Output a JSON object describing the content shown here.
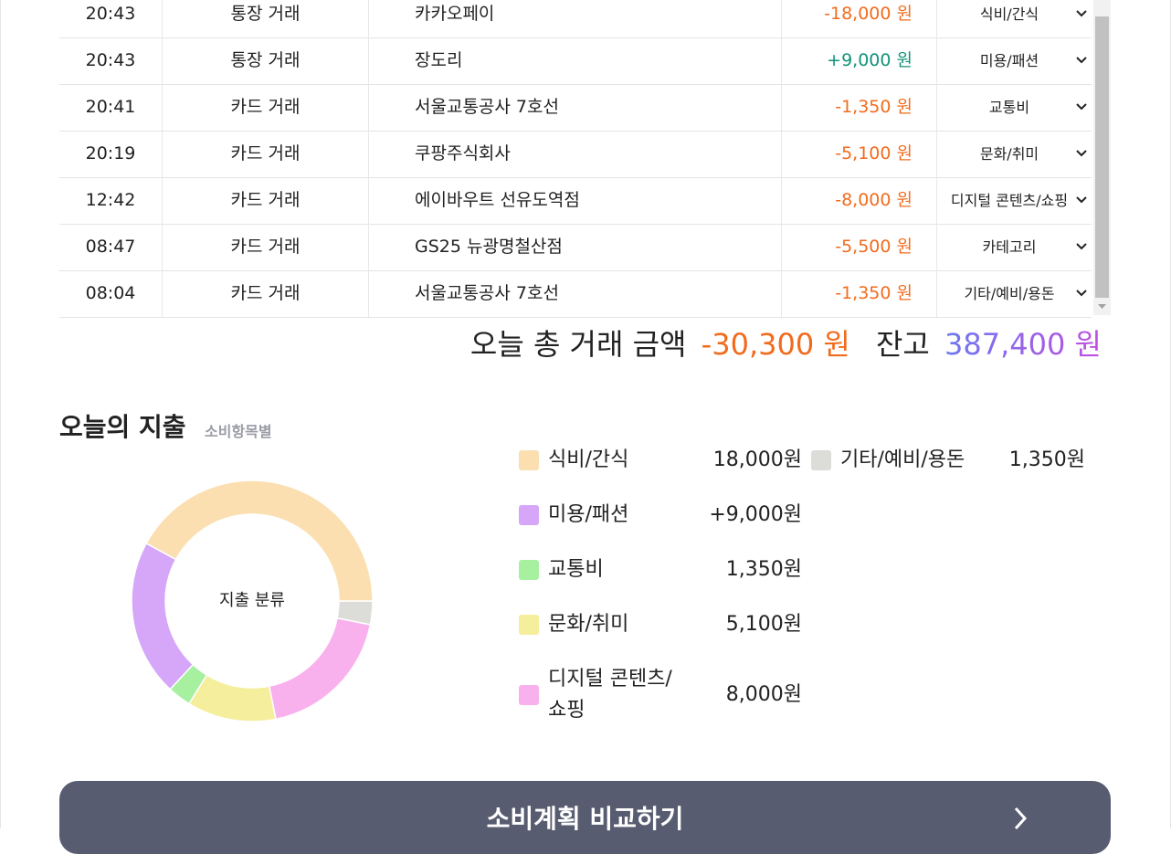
{
  "transactions": [
    [
      "20:43",
      "통장 거래",
      "카카오페이",
      "-18,000 원",
      "식비/간식"
    ],
    [
      "20:43",
      "통장 거래",
      "장도리",
      "+9,000 원",
      "미용/패션"
    ],
    [
      "20:41",
      "카드 거래",
      "서울교통공사 7호선",
      "-1,350 원",
      "교통비"
    ],
    [
      "20:19",
      "카드 거래",
      "쿠팡주식회사",
      "-5,100 원",
      "문화/취미"
    ],
    [
      "12:42",
      "카드 거래",
      "에이바우트 선유도역점",
      "-8,000 원",
      "디지털 콘텐츠/쇼핑"
    ],
    [
      "08:47",
      "카드 거래",
      "GS25 뉴광명철산점",
      "-5,500 원",
      "카테고리"
    ],
    [
      "08:04",
      "카드 거래",
      "서울교통공사 7호선",
      "-1,350 원",
      "기타/예비/용돈"
    ]
  ],
  "summary": {
    "total_label": "오늘 총 거래 금액",
    "total": "-30,300 원",
    "balance_label": "잔고",
    "balance": "387,400 원"
  },
  "section": {
    "title": "오늘의 지출",
    "subtitle": "소비항목별"
  },
  "chart_data": {
    "type": "pie",
    "center_label": "지출 분류",
    "categories": [
      "식비/간식",
      "미용/패션",
      "교통비",
      "문화/취미",
      "디지털 콘텐츠/쇼핑",
      "기타/예비/용돈"
    ],
    "values": [
      18000,
      9000,
      1350,
      5100,
      8000,
      1350
    ],
    "value_labels": [
      "18,000원",
      "+9,000원",
      "1,350원",
      "5,100원",
      "8,000원",
      "1,350원"
    ],
    "colors": [
      "#fbdfb0",
      "#d6a6f9",
      "#a6f0a0",
      "#f5ee9c",
      "#f9b1ee",
      "#dcdcd8"
    ]
  },
  "button": {
    "label": "소비계획 비교하기"
  }
}
